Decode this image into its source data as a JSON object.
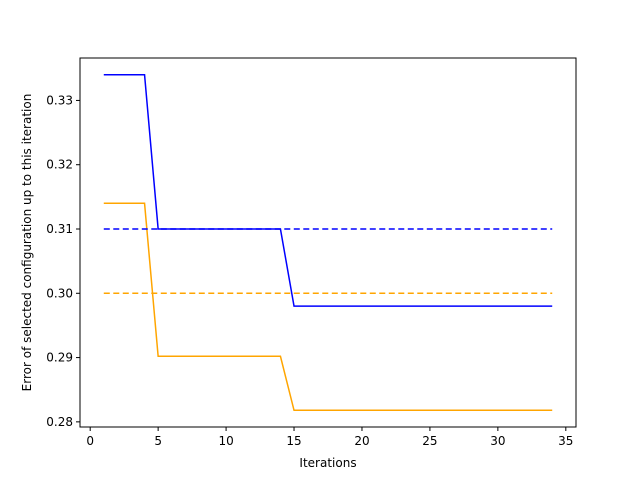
{
  "chart_data": {
    "type": "line",
    "title": "",
    "xlabel": "Iterations",
    "ylabel": "Error of selected configuration up to this iteration",
    "xlim": [
      -0.75,
      35.75
    ],
    "ylim": [
      0.2792,
      0.3366
    ],
    "xticks": [
      0,
      5,
      10,
      15,
      20,
      25,
      30,
      35
    ],
    "yticks": [
      0.28,
      0.29,
      0.3,
      0.31,
      0.32,
      0.33
    ],
    "ytick_labels": [
      "0.28",
      "0.29",
      "0.30",
      "0.31",
      "0.32",
      "0.33"
    ],
    "grid": false,
    "legend": false,
    "series": [
      {
        "color": "#0000ff",
        "style": "solid",
        "x": [
          1,
          2,
          3,
          4,
          5,
          6,
          7,
          8,
          9,
          10,
          11,
          12,
          13,
          14,
          15,
          16,
          17,
          18,
          19,
          20,
          21,
          22,
          23,
          24,
          25,
          26,
          27,
          28,
          29,
          30,
          31,
          32,
          33,
          34
        ],
        "values": [
          0.334,
          0.334,
          0.334,
          0.334,
          0.31,
          0.31,
          0.31,
          0.31,
          0.31,
          0.31,
          0.31,
          0.31,
          0.31,
          0.31,
          0.298,
          0.298,
          0.298,
          0.298,
          0.298,
          0.298,
          0.298,
          0.298,
          0.298,
          0.298,
          0.298,
          0.298,
          0.298,
          0.298,
          0.298,
          0.298,
          0.298,
          0.298,
          0.298,
          0.298
        ]
      },
      {
        "color": "#ffa500",
        "style": "solid",
        "x": [
          1,
          2,
          3,
          4,
          5,
          6,
          7,
          8,
          9,
          10,
          11,
          12,
          13,
          14,
          15,
          16,
          17,
          18,
          19,
          20,
          21,
          22,
          23,
          24,
          25,
          26,
          27,
          28,
          29,
          30,
          31,
          32,
          33,
          34
        ],
        "values": [
          0.314,
          0.314,
          0.314,
          0.314,
          0.2902,
          0.2902,
          0.2902,
          0.2902,
          0.2902,
          0.2902,
          0.2902,
          0.2902,
          0.2902,
          0.2902,
          0.2818,
          0.2818,
          0.2818,
          0.2818,
          0.2818,
          0.2818,
          0.2818,
          0.2818,
          0.2818,
          0.2818,
          0.2818,
          0.2818,
          0.2818,
          0.2818,
          0.2818,
          0.2818,
          0.2818,
          0.2818,
          0.2818,
          0.2818
        ]
      },
      {
        "color": "#0000ff",
        "style": "dashed",
        "x": [
          1,
          34
        ],
        "values": [
          0.31,
          0.31
        ]
      },
      {
        "color": "#ffa500",
        "style": "dashed",
        "x": [
          1,
          34
        ],
        "values": [
          0.3,
          0.3
        ]
      }
    ]
  }
}
